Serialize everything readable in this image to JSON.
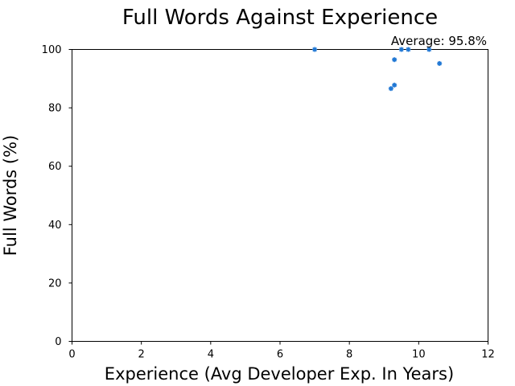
{
  "chart_data": {
    "type": "scatter",
    "title": "Full Words Against Experience",
    "xlabel": "Experience (Avg Developer Exp. In Years)",
    "ylabel": "Full Words (%)",
    "xlim": [
      0,
      12
    ],
    "ylim": [
      0,
      100
    ],
    "xticks": [
      0,
      2,
      4,
      6,
      8,
      10,
      12
    ],
    "yticks": [
      0,
      20,
      40,
      60,
      80,
      100
    ],
    "grid": false,
    "annotation": "Average: 95.8%",
    "marker_color": "#1f77d4",
    "series": [
      {
        "points": [
          {
            "x": 7.0,
            "y": 100
          },
          {
            "x": 9.5,
            "y": 100
          },
          {
            "x": 9.7,
            "y": 100
          },
          {
            "x": 10.3,
            "y": 100
          },
          {
            "x": 9.3,
            "y": 96.5
          },
          {
            "x": 10.6,
            "y": 95.2
          },
          {
            "x": 9.3,
            "y": 87.8
          },
          {
            "x": 9.2,
            "y": 86.6
          }
        ]
      }
    ]
  }
}
